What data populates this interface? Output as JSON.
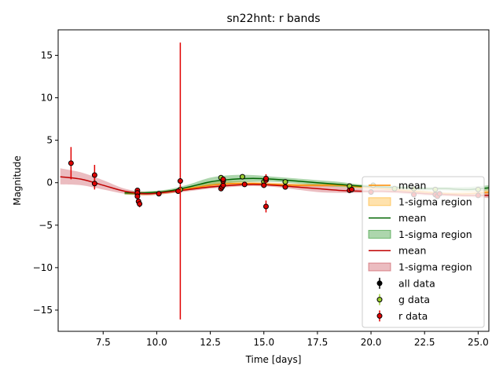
{
  "chart_data": {
    "type": "line",
    "title": "sn22hnt: r bands",
    "xlabel": "Time [days]",
    "ylabel": "Magnitude",
    "xlim": [
      5.4,
      25.5
    ],
    "ylim": [
      18,
      -17.5
    ],
    "y_inverted": true,
    "grid": false,
    "legend_placement": "lower-right",
    "x_ticks": [
      7.5,
      10.0,
      12.5,
      15.0,
      17.5,
      20.0,
      22.5,
      25.0
    ],
    "x_tick_labels": [
      "7.5",
      "10.0",
      "12.5",
      "15.0",
      "17.5",
      "20.0",
      "22.5",
      "25.0"
    ],
    "y_ticks": [
      -15,
      -10,
      -5,
      0,
      5,
      10,
      15
    ],
    "y_tick_labels": [
      "−15",
      "−10",
      "−5",
      "0",
      "5",
      "10",
      "15"
    ],
    "legend": [
      {
        "label": "mean",
        "kind": "line",
        "color": "#ff8c00"
      },
      {
        "label": "1-sigma region",
        "kind": "patch",
        "color": "#ffa500"
      },
      {
        "label": "mean",
        "kind": "line",
        "color": "#006400"
      },
      {
        "label": "1-sigma region",
        "kind": "patch",
        "color": "#008000"
      },
      {
        "label": "mean",
        "kind": "line",
        "color": "#c00000"
      },
      {
        "label": "1-sigma region",
        "kind": "patch",
        "color": "#c0303a"
      },
      {
        "label": "all data",
        "kind": "errorbar",
        "color": "#000000",
        "edge": "#000000"
      },
      {
        "label": "g data",
        "kind": "errorbar",
        "color": "#9acd32",
        "edge": "#000000"
      },
      {
        "label": "r data",
        "kind": "errorbar",
        "color": "#e00000",
        "edge": "#000000"
      }
    ],
    "series": [
      {
        "kind": "model",
        "color": "#ff8c00",
        "band_color": "#ffa500",
        "x": [
          8.5,
          9.5,
          10.5,
          11.5,
          12.5,
          13.5,
          14.5,
          15.5,
          16.5,
          17.5,
          18.5,
          19.5,
          20.5,
          21.5,
          22.5,
          23.5,
          24.5,
          25.5
        ],
        "mean": [
          -1.2,
          -1.3,
          -1.1,
          -0.7,
          -0.3,
          -0.1,
          -0.1,
          -0.2,
          -0.3,
          -0.3,
          -0.3,
          -0.5,
          -0.7,
          -0.9,
          -1.1,
          -1.3,
          -1.3,
          -1.1
        ],
        "lower": [
          -1.4,
          -1.5,
          -1.3,
          -0.9,
          -0.6,
          -0.4,
          -0.3,
          -0.4,
          -0.5,
          -0.5,
          -0.5,
          -0.7,
          -0.9,
          -1.1,
          -1.3,
          -1.5,
          -1.6,
          -1.4
        ],
        "upper": [
          -1.0,
          -1.1,
          -0.9,
          -0.5,
          0.0,
          0.2,
          0.1,
          0.0,
          -0.1,
          -0.1,
          -0.1,
          -0.3,
          -0.5,
          -0.7,
          -0.9,
          -1.1,
          -1.0,
          -0.8
        ]
      },
      {
        "kind": "model",
        "color": "#006400",
        "band_color": "#008000",
        "x": [
          8.5,
          9.5,
          10.5,
          11.5,
          12.5,
          13.5,
          14.5,
          15.5,
          16.5,
          17.5,
          18.5,
          19.5,
          20.5,
          21.5,
          22.5,
          23.5,
          24.5,
          25.5
        ],
        "mean": [
          -1.2,
          -1.2,
          -1.0,
          -0.5,
          0.1,
          0.4,
          0.5,
          0.4,
          0.2,
          0.0,
          -0.2,
          -0.4,
          -0.5,
          -0.6,
          -0.7,
          -0.7,
          -0.8,
          -0.6
        ],
        "lower": [
          -1.4,
          -1.4,
          -1.2,
          -0.8,
          -0.3,
          0.0,
          0.1,
          0.1,
          -0.1,
          -0.3,
          -0.5,
          -0.6,
          -0.7,
          -0.8,
          -0.9,
          -0.9,
          -1.0,
          -0.9
        ],
        "upper": [
          -1.0,
          -1.0,
          -0.8,
          -0.2,
          0.6,
          0.9,
          0.9,
          0.7,
          0.5,
          0.3,
          0.1,
          -0.2,
          -0.3,
          -0.4,
          -0.5,
          -0.5,
          -0.5,
          -0.3
        ]
      },
      {
        "kind": "model",
        "color": "#c00000",
        "band_color": "#c0303a",
        "x": [
          5.5,
          6.5,
          7.5,
          8.5,
          9.5,
          10.5,
          11.5,
          12.5,
          13.5,
          14.5,
          15.5,
          16.5,
          17.5,
          18.5,
          19.5,
          20.5,
          21.5,
          22.5,
          23.5,
          24.5,
          25.5
        ],
        "mean": [
          0.7,
          0.4,
          -0.3,
          -1.0,
          -1.3,
          -1.1,
          -0.8,
          -0.5,
          -0.3,
          -0.2,
          -0.3,
          -0.5,
          -0.7,
          -0.9,
          -1.0,
          -1.0,
          -1.1,
          -1.3,
          -1.4,
          -1.5,
          -1.5
        ],
        "lower": [
          -0.2,
          -0.3,
          -0.8,
          -1.3,
          -1.5,
          -1.3,
          -1.0,
          -0.7,
          -0.5,
          -0.4,
          -0.5,
          -0.8,
          -1.1,
          -1.2,
          -1.2,
          -1.2,
          -1.3,
          -1.5,
          -1.6,
          -1.7,
          -1.8
        ],
        "upper": [
          1.7,
          1.2,
          0.3,
          -0.7,
          -1.1,
          -0.9,
          -0.6,
          -0.3,
          -0.1,
          0.0,
          -0.1,
          -0.2,
          -0.3,
          -0.5,
          -0.7,
          -0.8,
          -0.9,
          -1.1,
          -1.2,
          -1.3,
          -1.2
        ]
      },
      {
        "kind": "points",
        "name": "g data",
        "color": "#9acd32",
        "x": [
          9.1,
          11.1,
          13.0,
          14.0,
          15.0,
          16.0,
          19.0,
          20.1,
          21.1,
          22.0,
          23.0,
          25.0
        ],
        "y": [
          -1.3,
          -0.8,
          0.6,
          0.7,
          0.1,
          0.1,
          -0.4,
          -0.3,
          -0.7,
          -0.7,
          -0.8,
          -0.8
        ],
        "err": [
          0.2,
          0.2,
          0.2,
          0.2,
          0.2,
          0.2,
          0.2,
          0.2,
          0.2,
          0.2,
          0.2,
          0.2
        ]
      },
      {
        "kind": "points",
        "name": "r data",
        "color": "#e00000",
        "x": [
          6.0,
          7.1,
          7.1,
          9.1,
          9.1,
          9.1,
          9.15,
          9.2,
          10.1,
          11.0,
          11.1,
          13.0,
          13.05,
          13.1,
          13.1,
          13.1,
          14.1,
          15.0,
          15.1,
          15.1,
          15.1,
          16.0,
          19.0,
          19.1,
          20.0,
          22.0,
          23.0,
          23.1,
          23.2,
          25.0
        ],
        "y": [
          2.3,
          0.9,
          -0.1,
          -0.9,
          -1.2,
          -1.6,
          -2.2,
          -2.5,
          -1.3,
          -1.0,
          0.2,
          -0.7,
          -0.5,
          -0.3,
          0.2,
          0.4,
          -0.2,
          -0.3,
          -2.8,
          0.3,
          0.5,
          -0.5,
          -0.9,
          -0.8,
          -1.1,
          -1.4,
          -1.4,
          -1.6,
          -1.3,
          -1.5
        ],
        "err": [
          1.9,
          1.2,
          0.7,
          0.3,
          0.3,
          0.3,
          0.4,
          0.4,
          0.2,
          0.2,
          16.3,
          0.2,
          0.2,
          0.2,
          0.3,
          0.3,
          0.2,
          0.2,
          0.7,
          0.3,
          0.5,
          0.2,
          0.2,
          0.2,
          0.2,
          0.2,
          0.2,
          0.2,
          0.2,
          0.2
        ]
      }
    ]
  }
}
